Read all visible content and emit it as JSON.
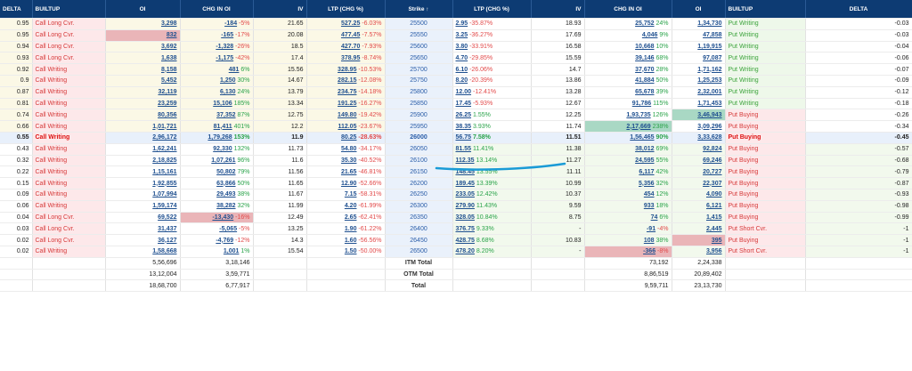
{
  "headers": {
    "left": [
      "DELTA",
      "BUILTUP",
      "OI",
      "CHG IN OI",
      "IV",
      "LTP (CHG %)"
    ],
    "strike": "Strike ↑",
    "right": [
      "LTP (CHG %)",
      "IV",
      "CHG IN OI",
      "OI",
      "BUILTUP",
      "DELTA"
    ]
  },
  "rows": [
    {
      "cd": "0.95",
      "cb": "Call Long Cvr.",
      "coi": "3,298",
      "cchg": "-184",
      "cchgp": "-5%",
      "civ": "21.65",
      "cltp": "527.25",
      "cltpp": "-6.03%",
      "strike": "25500",
      "pltp": "2.95",
      "pltpp": "-35.87%",
      "piv": "18.93",
      "pchg": "25,752",
      "pchgp": "24%",
      "poi": "1,34,730",
      "pb": "Put Writing",
      "pd": "-0.03"
    },
    {
      "cd": "0.95",
      "cb": "Call Long Cvr.",
      "coi": "832",
      "cchg": "-165",
      "cchgp": "-17%",
      "civ": "20.08",
      "cltp": "477.45",
      "cltpp": "-7.57%",
      "strike": "25550",
      "pltp": "3.25",
      "pltpp": "-36.27%",
      "piv": "17.69",
      "pchg": "4,046",
      "pchgp": "9%",
      "poi": "47,858",
      "pb": "Put Writing",
      "pd": "-0.03"
    },
    {
      "cd": "0.94",
      "cb": "Call Long Cvr.",
      "coi": "3,692",
      "cchg": "-1,328",
      "cchgp": "-26%",
      "civ": "18.5",
      "cltp": "427.70",
      "cltpp": "-7.93%",
      "strike": "25600",
      "pltp": "3.80",
      "pltpp": "-33.91%",
      "piv": "16.58",
      "pchg": "10,668",
      "pchgp": "10%",
      "poi": "1,19,915",
      "pb": "Put Writing",
      "pd": "-0.04"
    },
    {
      "cd": "0.93",
      "cb": "Call Long Cvr.",
      "coi": "1,638",
      "cchg": "-1,175",
      "cchgp": "-42%",
      "civ": "17.4",
      "cltp": "378.95",
      "cltpp": "-8.74%",
      "strike": "25650",
      "pltp": "4.70",
      "pltpp": "-29.85%",
      "piv": "15.59",
      "pchg": "39,146",
      "pchgp": "68%",
      "poi": "97,087",
      "pb": "Put Writing",
      "pd": "-0.06"
    },
    {
      "cd": "0.92",
      "cb": "Call Writing",
      "coi": "8,158",
      "cchg": "481",
      "cchgp": "6%",
      "civ": "15.56",
      "cltp": "328.95",
      "cltpp": "-10.53%",
      "strike": "25700",
      "pltp": "6.10",
      "pltpp": "-26.06%",
      "piv": "14.7",
      "pchg": "37,670",
      "pchgp": "28%",
      "poi": "1,71,162",
      "pb": "Put Writing",
      "pd": "-0.07"
    },
    {
      "cd": "0.9",
      "cb": "Call Writing",
      "coi": "5,452",
      "cchg": "1,250",
      "cchgp": "30%",
      "civ": "14.67",
      "cltp": "282.15",
      "cltpp": "-12.08%",
      "strike": "25750",
      "pltp": "8.20",
      "pltpp": "-20.39%",
      "piv": "13.86",
      "pchg": "41,884",
      "pchgp": "50%",
      "poi": "1,25,253",
      "pb": "Put Writing",
      "pd": "-0.09"
    },
    {
      "cd": "0.87",
      "cb": "Call Writing",
      "coi": "32,119",
      "cchg": "6,130",
      "cchgp": "24%",
      "civ": "13.79",
      "cltp": "234.75",
      "cltpp": "-14.18%",
      "strike": "25800",
      "pltp": "12.00",
      "pltpp": "-12.41%",
      "piv": "13.28",
      "pchg": "65,678",
      "pchgp": "39%",
      "poi": "2,32,001",
      "pb": "Put Writing",
      "pd": "-0.12"
    },
    {
      "cd": "0.81",
      "cb": "Call Writing",
      "coi": "23,259",
      "cchg": "15,106",
      "cchgp": "185%",
      "civ": "13.34",
      "cltp": "191.25",
      "cltpp": "-16.27%",
      "strike": "25850",
      "pltp": "17.45",
      "pltpp": "-5.93%",
      "piv": "12.67",
      "pchg": "91,786",
      "pchgp": "115%",
      "poi": "1,71,453",
      "pb": "Put Writing",
      "pd": "-0.18"
    },
    {
      "cd": "0.74",
      "cb": "Call Writing",
      "coi": "80,356",
      "cchg": "37,352",
      "cchgp": "87%",
      "civ": "12.75",
      "cltp": "149.80",
      "cltpp": "-19.42%",
      "strike": "25900",
      "pltp": "26.25",
      "pltpp": "1.55%",
      "piv": "12.25",
      "pchg": "1,93,735",
      "pchgp": "126%",
      "poi": "3,46,943",
      "pb": "Put Buying",
      "pd": "-0.26"
    },
    {
      "cd": "0.66",
      "cb": "Call Writing",
      "coi": "1,01,721",
      "cchg": "81,411",
      "cchgp": "401%",
      "civ": "12.2",
      "cltp": "112.05",
      "cltpp": "-23.67%",
      "strike": "25950",
      "pltp": "38.35",
      "pltpp": "3.93%",
      "piv": "11.74",
      "pchg": "2,17,669",
      "pchgp": "238%",
      "poi": "3,09,296",
      "pb": "Put Buying",
      "pd": "-0.34"
    },
    {
      "cd": "0.55",
      "cb": "Call Writing",
      "coi": "2,96,172",
      "cchg": "1,79,268",
      "cchgp": "153%",
      "civ": "11.9",
      "cltp": "80.25",
      "cltpp": "-28.63%",
      "strike": "26000",
      "pltp": "56.75",
      "pltpp": "7.58%",
      "piv": "11.51",
      "pchg": "1,56,465",
      "pchgp": "90%",
      "poi": "3,33,628",
      "pb": "Put Buying",
      "pd": "-0.45"
    },
    {
      "cd": "0.43",
      "cb": "Call Writing",
      "coi": "1,62,241",
      "cchg": "92,330",
      "cchgp": "132%",
      "civ": "11.73",
      "cltp": "54.80",
      "cltpp": "-34.17%",
      "strike": "26050",
      "pltp": "81.55",
      "pltpp": "11.41%",
      "piv": "11.38",
      "pchg": "38,012",
      "pchgp": "69%",
      "poi": "92,824",
      "pb": "Put Buying",
      "pd": "-0.57"
    },
    {
      "cd": "0.32",
      "cb": "Call Writing",
      "coi": "2,18,825",
      "cchg": "1,07,261",
      "cchgp": "96%",
      "civ": "11.6",
      "cltp": "35.30",
      "cltpp": "-40.52%",
      "strike": "26100",
      "pltp": "112.35",
      "pltpp": "13.14%",
      "piv": "11.27",
      "pchg": "24,595",
      "pchgp": "55%",
      "poi": "69,246",
      "pb": "Put Buying",
      "pd": "-0.68"
    },
    {
      "cd": "0.22",
      "cb": "Call Writing",
      "coi": "1,15,161",
      "cchg": "50,802",
      "cchgp": "79%",
      "civ": "11.56",
      "cltp": "21.65",
      "cltpp": "-46.81%",
      "strike": "26150",
      "pltp": "148.45",
      "pltpp": "13.55%",
      "piv": "11.11",
      "pchg": "6,117",
      "pchgp": "42%",
      "poi": "20,727",
      "pb": "Put Buying",
      "pd": "-0.79"
    },
    {
      "cd": "0.15",
      "cb": "Call Writing",
      "coi": "1,92,855",
      "cchg": "63,866",
      "cchgp": "50%",
      "civ": "11.65",
      "cltp": "12.90",
      "cltpp": "-52.66%",
      "strike": "26200",
      "pltp": "189.45",
      "pltpp": "13.39%",
      "piv": "10.99",
      "pchg": "5,356",
      "pchgp": "32%",
      "poi": "22,307",
      "pb": "Put Buying",
      "pd": "-0.87"
    },
    {
      "cd": "0.09",
      "cb": "Call Writing",
      "coi": "1,07,994",
      "cchg": "29,493",
      "cchgp": "38%",
      "civ": "11.67",
      "cltp": "7.15",
      "cltpp": "-58.31%",
      "strike": "26250",
      "pltp": "233.05",
      "pltpp": "12.42%",
      "piv": "10.37",
      "pchg": "454",
      "pchgp": "12%",
      "poi": "4,090",
      "pb": "Put Buying",
      "pd": "-0.93"
    },
    {
      "cd": "0.06",
      "cb": "Call Writing",
      "coi": "1,59,174",
      "cchg": "38,282",
      "cchgp": "32%",
      "civ": "11.99",
      "cltp": "4.20",
      "cltpp": "-61.99%",
      "strike": "26300",
      "pltp": "279.90",
      "pltpp": "11.43%",
      "piv": "9.59",
      "pchg": "933",
      "pchgp": "18%",
      "poi": "6,121",
      "pb": "Put Buying",
      "pd": "-0.98"
    },
    {
      "cd": "0.04",
      "cb": "Call Long Cvr.",
      "coi": "69,522",
      "cchg": "-13,430",
      "cchgp": "-16%",
      "civ": "12.49",
      "cltp": "2.65",
      "cltpp": "-62.41%",
      "strike": "26350",
      "pltp": "328.05",
      "pltpp": "10.84%",
      "piv": "8.75",
      "pchg": "74",
      "pchgp": "6%",
      "poi": "1,415",
      "pb": "Put Buying",
      "pd": "-0.99"
    },
    {
      "cd": "0.03",
      "cb": "Call Long Cvr.",
      "coi": "31,437",
      "cchg": "-5,065",
      "cchgp": "-5%",
      "civ": "13.25",
      "cltp": "1.90",
      "cltpp": "-61.22%",
      "strike": "26400",
      "pltp": "376.75",
      "pltpp": "9.33%",
      "piv": "-",
      "pchg": "-91",
      "pchgp": "-4%",
      "poi": "2,445",
      "pb": "Put Short Cvr.",
      "pd": "-1"
    },
    {
      "cd": "0.02",
      "cb": "Call Long Cvr.",
      "coi": "36,127",
      "cchg": "-4,769",
      "cchgp": "-12%",
      "civ": "14.3",
      "cltp": "1.60",
      "cltpp": "-56.56%",
      "strike": "26450",
      "pltp": "428.75",
      "pltpp": "8.68%",
      "piv": "10.83",
      "pchg": "108",
      "pchgp": "38%",
      "poi": "395",
      "pb": "Put Buying",
      "pd": "-1"
    },
    {
      "cd": "0.02",
      "cb": "Call Writing",
      "coi": "1,58,668",
      "cchg": "1,001",
      "cchgp": "1%",
      "civ": "15.54",
      "cltp": "1.50",
      "cltpp": "-50.00%",
      "strike": "26500",
      "pltp": "478.20",
      "pltpp": "8.20%",
      "piv": "-",
      "pchg": "-366",
      "pchgp": "-8%",
      "poi": "3,956",
      "pb": "Put Short Cvr.",
      "pd": "-1"
    }
  ],
  "totals": [
    {
      "label": "ITM Total",
      "coi": "5,56,696",
      "cchg": "3,18,146",
      "pchg": "73,192",
      "poi": "2,24,338"
    },
    {
      "label": "OTM Total",
      "coi": "13,12,004",
      "cchg": "3,59,771",
      "pchg": "8,86,519",
      "poi": "20,89,402"
    },
    {
      "label": "Total",
      "coi": "18,68,700",
      "cchg": "6,77,917",
      "pchg": "9,59,711",
      "poi": "23,13,730"
    }
  ],
  "colors": {
    "header": "#0d3b73",
    "call_bg": "#fbf8e6",
    "put_bg": "#f2f9ed",
    "strike_bg": "#eaf1fb",
    "positive": "#2aa34a",
    "negative": "#e24a4a",
    "marker": "#1a9bd6"
  },
  "atm_strike": "26000"
}
